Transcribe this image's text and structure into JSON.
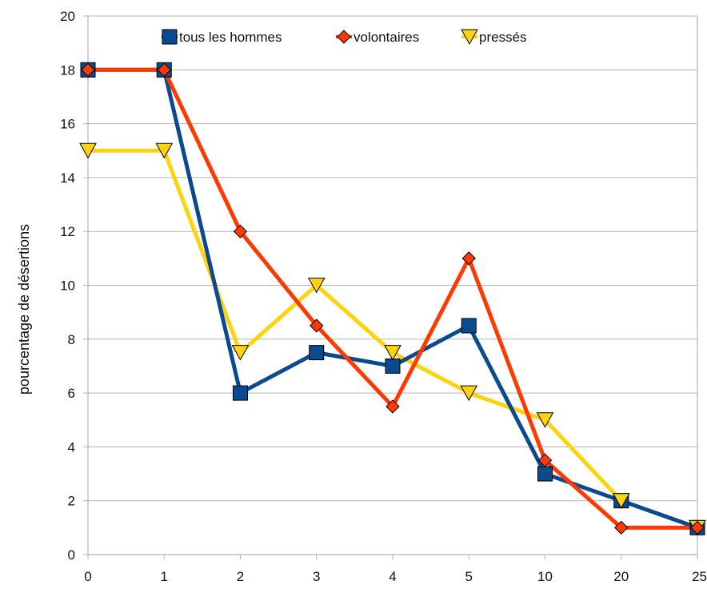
{
  "chart_data": {
    "type": "line",
    "title": "",
    "title_partial": "",
    "xlabel": "",
    "ylabel": "pourcentage de désertions",
    "categories": [
      "0",
      "1",
      "2",
      "3",
      "4",
      "5",
      "10",
      "20",
      "25"
    ],
    "ylim": [
      0,
      20
    ],
    "yticks": [
      0,
      2,
      4,
      6,
      8,
      10,
      12,
      14,
      16,
      18,
      20
    ],
    "grid": true,
    "legend_position": "top-center",
    "series": [
      {
        "name": "tous les hommes",
        "color": "#0b4a8f",
        "marker": "square",
        "values": [
          18,
          18,
          6,
          7.5,
          7,
          8.5,
          3,
          2,
          1
        ]
      },
      {
        "name": "volontaires",
        "color": "#ff3a00",
        "marker": "diamond",
        "values": [
          18,
          18,
          12,
          8.5,
          5.5,
          11,
          3.5,
          1,
          1
        ]
      },
      {
        "name": "pressés",
        "color": "#ffd30f",
        "marker": "triangle-down",
        "values": [
          15,
          15,
          7.5,
          10,
          7.5,
          6,
          5,
          2,
          1
        ]
      }
    ]
  }
}
